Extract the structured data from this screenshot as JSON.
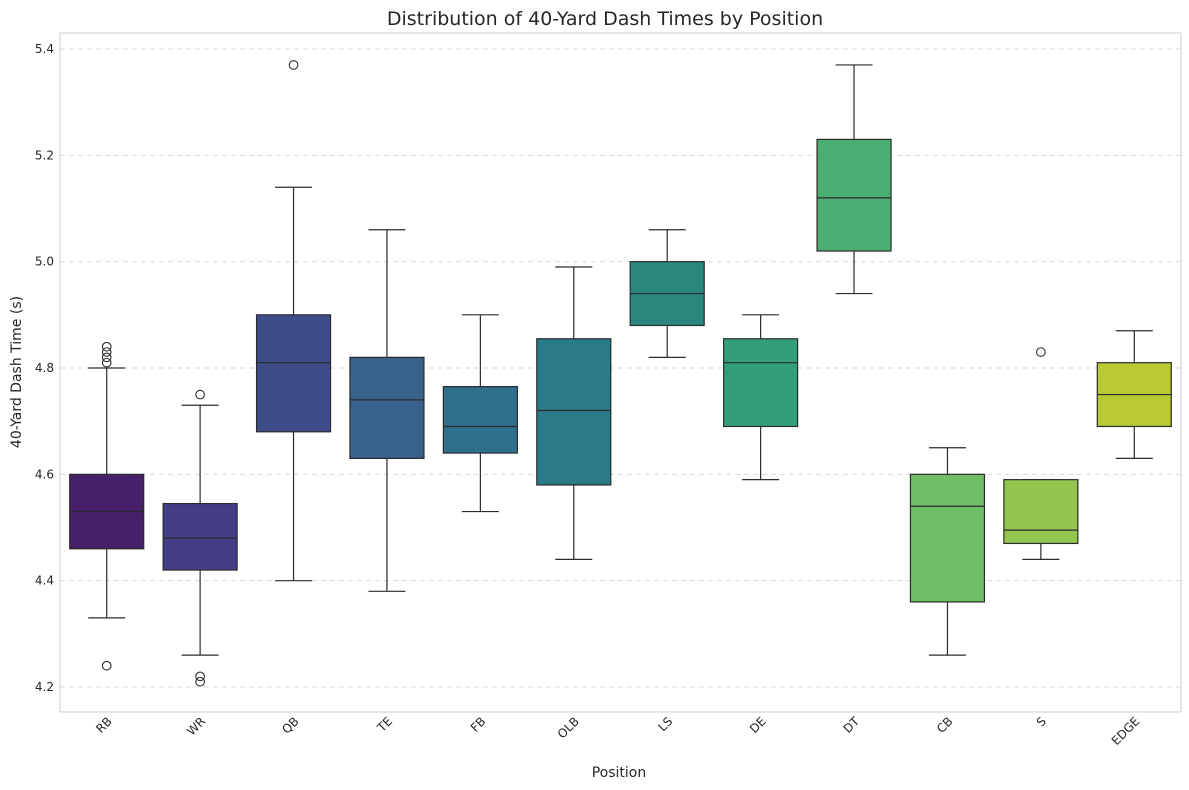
{
  "chart_data": {
    "type": "box",
    "title": "Distribution of 40-Yard Dash Times by Position",
    "xlabel": "Position",
    "ylabel": "40-Yard Dash Time (s)",
    "ylim": [
      4.15,
      5.43
    ],
    "yticks": [
      "4.2",
      "4.4",
      "4.6",
      "4.8",
      "5.0",
      "5.2",
      "5.4"
    ],
    "grid": "y-dashed",
    "categories": [
      "RB",
      "WR",
      "QB",
      "TE",
      "FB",
      "OLB",
      "LS",
      "DE",
      "DT",
      "CB",
      "S",
      "EDGE"
    ],
    "boxes": [
      {
        "category": "RB",
        "whisker_low": 4.33,
        "q1": 4.46,
        "median": 4.53,
        "q3": 4.6,
        "whisker_high": 4.8,
        "outliers": [
          4.24,
          4.81,
          4.82,
          4.83,
          4.84
        ],
        "color": "#462068"
      },
      {
        "category": "WR",
        "whisker_low": 4.26,
        "q1": 4.42,
        "median": 4.48,
        "q3": 4.545,
        "whisker_high": 4.73,
        "outliers": [
          4.21,
          4.22,
          4.75
        ],
        "color": "#433e85"
      },
      {
        "category": "QB",
        "whisker_low": 4.4,
        "q1": 4.68,
        "median": 4.81,
        "q3": 4.9,
        "whisker_high": 5.14,
        "outliers": [
          5.37
        ],
        "color": "#3e4c8a"
      },
      {
        "category": "TE",
        "whisker_low": 4.38,
        "q1": 4.63,
        "median": 4.74,
        "q3": 4.82,
        "whisker_high": 5.06,
        "outliers": [],
        "color": "#38618c"
      },
      {
        "category": "FB",
        "whisker_low": 4.53,
        "q1": 4.64,
        "median": 4.69,
        "q3": 4.765,
        "whisker_high": 4.9,
        "outliers": [],
        "color": "#2f6f8d"
      },
      {
        "category": "OLB",
        "whisker_low": 4.44,
        "q1": 4.58,
        "median": 4.72,
        "q3": 4.855,
        "whisker_high": 4.99,
        "outliers": [],
        "color": "#2a7a87"
      },
      {
        "category": "LS",
        "whisker_low": 4.82,
        "q1": 4.88,
        "median": 4.94,
        "q3": 5.0,
        "whisker_high": 5.06,
        "outliers": [],
        "color": "#29877e"
      },
      {
        "category": "DE",
        "whisker_low": 4.59,
        "q1": 4.69,
        "median": 4.81,
        "q3": 4.855,
        "whisker_high": 4.9,
        "outliers": [],
        "color": "#339e7a"
      },
      {
        "category": "DT",
        "whisker_low": 4.94,
        "q1": 5.02,
        "median": 5.12,
        "q3": 5.23,
        "whisker_high": 5.37,
        "outliers": [],
        "color": "#4aad72"
      },
      {
        "category": "CB",
        "whisker_low": 4.26,
        "q1": 4.36,
        "median": 4.54,
        "q3": 4.6,
        "whisker_high": 4.65,
        "outliers": [],
        "color": "#6fbe66"
      },
      {
        "category": "S",
        "whisker_low": 4.44,
        "q1": 4.47,
        "median": 4.495,
        "q3": 4.59,
        "whisker_high": 4.59,
        "outliers": [
          4.83
        ],
        "color": "#92c64f"
      },
      {
        "category": "EDGE",
        "whisker_low": 4.63,
        "q1": 4.69,
        "median": 4.75,
        "q3": 4.81,
        "whisker_high": 4.87,
        "outliers": [],
        "color": "#b8c932"
      }
    ]
  }
}
